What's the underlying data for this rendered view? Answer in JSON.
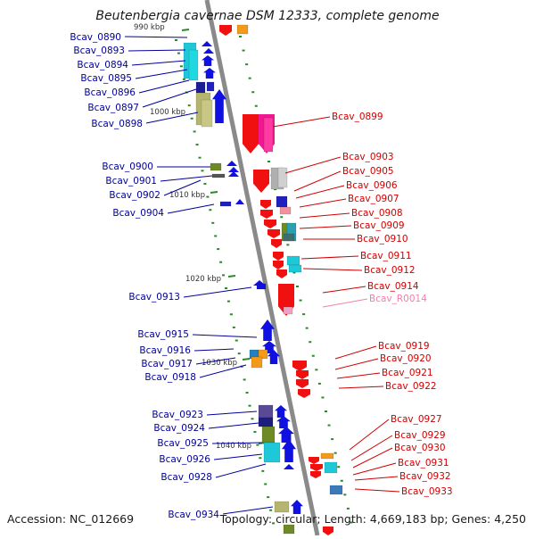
{
  "title": "Beutenbergia cavernae DSM 12333, complete genome",
  "accession": "Accession: NC_012669",
  "summary": "Topology: circular; Length: 4,669,183 bp; Genes: 4,250",
  "colors": {
    "backbone": "#8a8a8a",
    "forward_gene": "#1010e0",
    "reverse_gene": "#f01010",
    "rna_gene": "#f080b0",
    "tick": "#2a8a2a",
    "label_forward": "#00009a",
    "label_reverse": "#d00000",
    "label_rna": "#f080b0"
  },
  "ticks": [
    {
      "label": "990 kbp"
    },
    {
      "label": "1000 kbp"
    },
    {
      "label": "1010 kbp"
    },
    {
      "label": "1020 kbp"
    },
    {
      "label": "1030 kbp"
    },
    {
      "label": "1040 kbp"
    }
  ],
  "genes_left": [
    {
      "label": "Bcav_0890"
    },
    {
      "label": "Bcav_0893"
    },
    {
      "label": "Bcav_0894"
    },
    {
      "label": "Bcav_0895"
    },
    {
      "label": "Bcav_0896"
    },
    {
      "label": "Bcav_0897"
    },
    {
      "label": "Bcav_0898"
    },
    {
      "label": "Bcav_0900"
    },
    {
      "label": "Bcav_0901"
    },
    {
      "label": "Bcav_0902"
    },
    {
      "label": "Bcav_0904"
    },
    {
      "label": "Bcav_0913"
    },
    {
      "label": "Bcav_0915"
    },
    {
      "label": "Bcav_0916"
    },
    {
      "label": "Bcav_0917"
    },
    {
      "label": "Bcav_0918"
    },
    {
      "label": "Bcav_0923"
    },
    {
      "label": "Bcav_0924"
    },
    {
      "label": "Bcav_0925"
    },
    {
      "label": "Bcav_0926"
    },
    {
      "label": "Bcav_0928"
    },
    {
      "label": "Bcav_0934"
    }
  ],
  "genes_right": [
    {
      "label": "Bcav_0899"
    },
    {
      "label": "Bcav_0903"
    },
    {
      "label": "Bcav_0905"
    },
    {
      "label": "Bcav_0906"
    },
    {
      "label": "Bcav_0907"
    },
    {
      "label": "Bcav_0908"
    },
    {
      "label": "Bcav_0909"
    },
    {
      "label": "Bcav_0910"
    },
    {
      "label": "Bcav_0911"
    },
    {
      "label": "Bcav_0912"
    },
    {
      "label": "Bcav_0914"
    },
    {
      "label": "Bcav_R0014"
    },
    {
      "label": "Bcav_0919"
    },
    {
      "label": "Bcav_0920"
    },
    {
      "label": "Bcav_0921"
    },
    {
      "label": "Bcav_0922"
    },
    {
      "label": "Bcav_0927"
    },
    {
      "label": "Bcav_0929"
    },
    {
      "label": "Bcav_0930"
    },
    {
      "label": "Bcav_0931"
    },
    {
      "label": "Bcav_0932"
    },
    {
      "label": "Bcav_0933"
    }
  ]
}
